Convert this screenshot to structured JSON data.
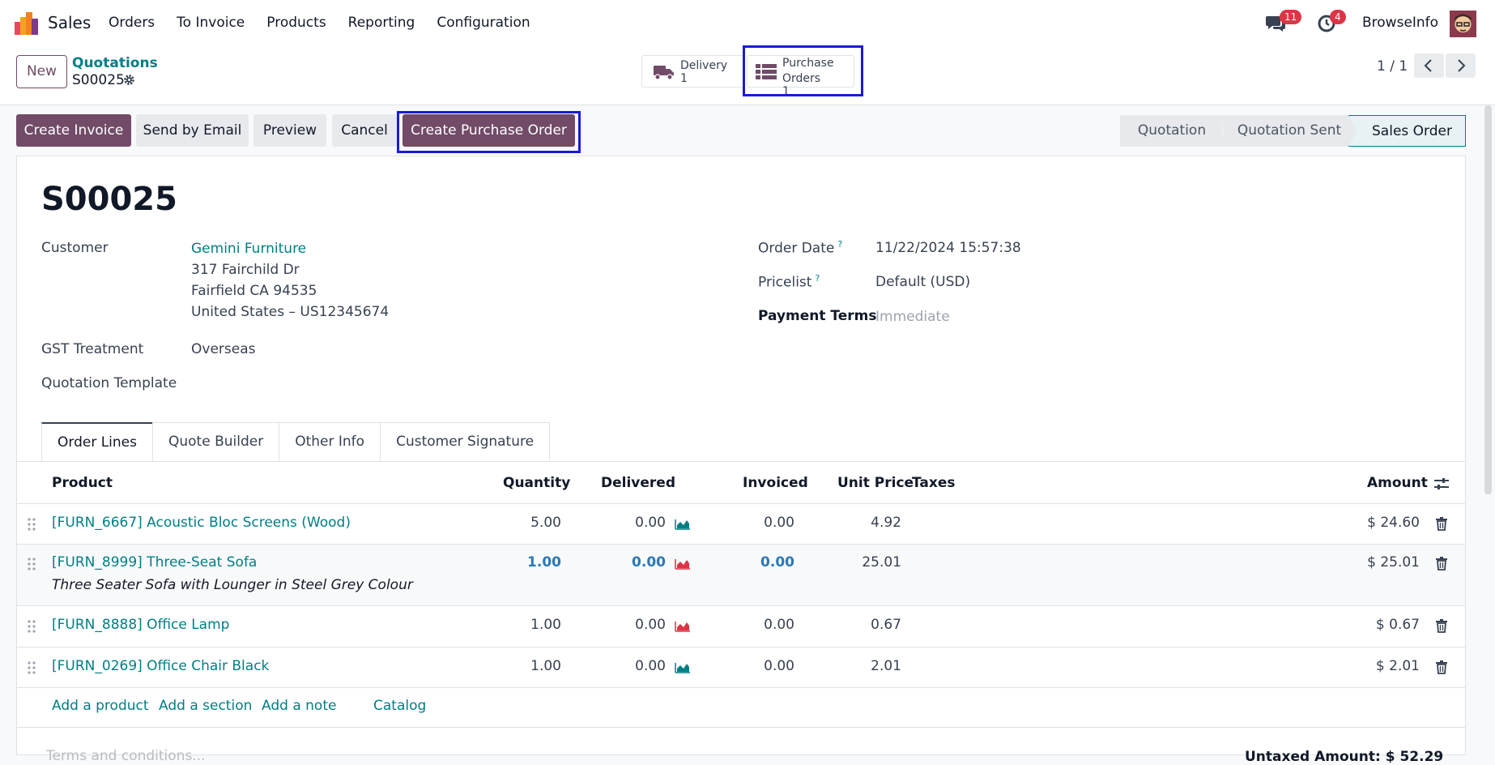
{
  "nav": {
    "app_name": "Sales",
    "menu": [
      "Orders",
      "To Invoice",
      "Products",
      "Reporting",
      "Configuration"
    ],
    "chat_count": "11",
    "activity_count": "4",
    "company": "BrowseInfo"
  },
  "control": {
    "new_label": "New",
    "breadcrumb_parent": "Quotations",
    "breadcrumb_current": "S00025",
    "delivery_label": "Delivery",
    "delivery_value": "1",
    "po_label_1": "Purchase",
    "po_label_2": "Orders",
    "po_value": "1",
    "pager": "1 / 1"
  },
  "actions": {
    "create_invoice": "Create Invoice",
    "send_email": "Send by Email",
    "preview": "Preview",
    "cancel": "Cancel",
    "create_po": "Create Purchase Order"
  },
  "stages": [
    "Quotation",
    "Quotation Sent",
    "Sales Order"
  ],
  "form": {
    "name": "S00025",
    "customer_label": "Customer",
    "customer_name": "Gemini Furniture",
    "address_1": "317 Fairchild Dr",
    "address_2": "Fairfield CA 94535",
    "address_3": "United States – US12345674",
    "gst_label": "GST Treatment",
    "gst_value": "Overseas",
    "template_label": "Quotation Template",
    "order_date_label": "Order Date",
    "order_date_value": "11/22/2024 15:57:38",
    "pricelist_label": "Pricelist",
    "pricelist_value": "Default (USD)",
    "payment_terms_label": "Payment Terms",
    "payment_terms_value": "Immediate",
    "help_mark": "?"
  },
  "tabs": [
    "Order Lines",
    "Quote Builder",
    "Other Info",
    "Customer Signature"
  ],
  "table": {
    "headers": {
      "product": "Product",
      "quantity": "Quantity",
      "delivered": "Delivered",
      "invoiced": "Invoiced",
      "unit_price": "Unit Price",
      "taxes": "Taxes",
      "amount": "Amount"
    },
    "rows": [
      {
        "product": "[FURN_6667] Acoustic Bloc Screens (Wood)",
        "quantity": "5.00",
        "delivered": "0.00",
        "invoiced": "0.00",
        "unit_price": "4.92",
        "amount": "$ 24.60",
        "forecast_color": "#017e84"
      },
      {
        "product": "[FURN_8999] Three-Seat Sofa",
        "note": "Three Seater Sofa with Lounger in Steel Grey Colour",
        "quantity": "1.00",
        "delivered": "0.00",
        "invoiced": "0.00",
        "unit_price": "25.01",
        "amount": "$ 25.01",
        "forecast_color": "#dc3545"
      },
      {
        "product": "[FURN_8888] Office Lamp",
        "quantity": "1.00",
        "delivered": "0.00",
        "invoiced": "0.00",
        "unit_price": "0.67",
        "amount": "$ 0.67",
        "forecast_color": "#dc3545"
      },
      {
        "product": "[FURN_0269] Office Chair Black",
        "quantity": "1.00",
        "delivered": "0.00",
        "invoiced": "0.00",
        "unit_price": "2.01",
        "amount": "$ 2.01",
        "forecast_color": "#017e84"
      }
    ],
    "add_product": "Add a product",
    "add_section": "Add a section",
    "add_note": "Add a note",
    "catalog": "Catalog"
  },
  "footer": {
    "terms_placeholder": "Terms and conditions...",
    "untaxed_label": "Untaxed Amount:",
    "untaxed_value": "$ 52.29"
  },
  "colors": {
    "primary": "#714b67",
    "link": "#017e84",
    "highlight": "#1a1ad6"
  }
}
